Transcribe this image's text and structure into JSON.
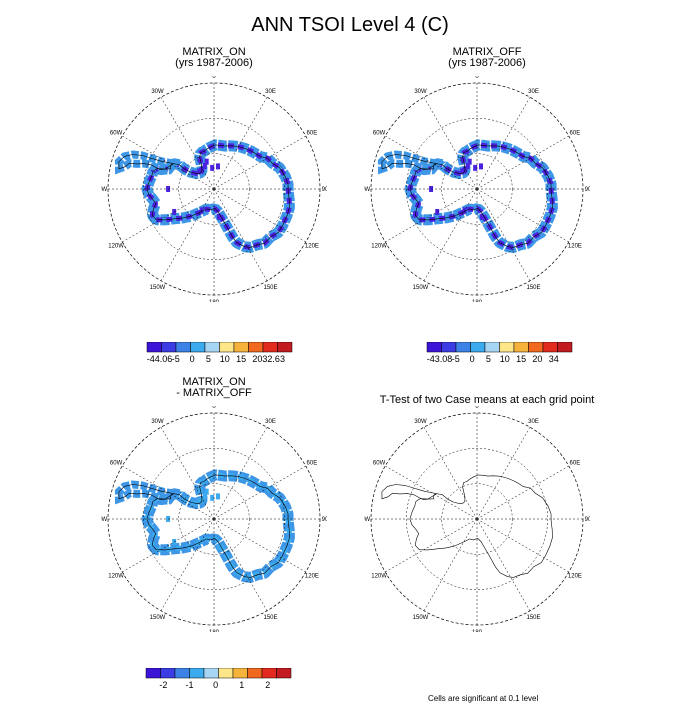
{
  "figure": {
    "title": "ANN TSOI Level 4 (C)"
  },
  "panels": [
    {
      "id": "on",
      "title_lines": [
        "MATRIX_ON",
        "(yrs 1987-2006)"
      ],
      "fill_color": "#4a22e0",
      "edge_color": "#3d96e6",
      "colorbar": {
        "colors": [
          "#3c14d8",
          "#3c3ce4",
          "#3d82e6",
          "#3caaee",
          "#a7d6f5",
          "#fde58a",
          "#f6b33c",
          "#f0691f",
          "#e22a1e",
          "#c21b20"
        ],
        "labels": [
          "-44.06",
          "-5",
          "0",
          "5",
          "10",
          "15",
          "20",
          "32.63"
        ]
      }
    },
    {
      "id": "off",
      "title_lines": [
        "MATRIX_OFF",
        "(yrs 1987-2006)"
      ],
      "fill_color": "#4a22e0",
      "edge_color": "#3d96e6",
      "colorbar": {
        "colors": [
          "#3c14d8",
          "#3c3ce4",
          "#3d82e6",
          "#3caaee",
          "#a7d6f5",
          "#fde58a",
          "#f6b33c",
          "#f0691f",
          "#e22a1e",
          "#c21b20"
        ],
        "labels": [
          "-43.08",
          "-5",
          "0",
          "5",
          "10",
          "15",
          "20",
          "34"
        ]
      }
    },
    {
      "id": "diff",
      "title_lines": [
        "MATRIX_ON",
        "- MATRIX_OFF"
      ],
      "fill_color": "#3caaee",
      "edge_color": "#3d96e6",
      "colorbar": {
        "colors": [
          "#3c14d8",
          "#3c3ce4",
          "#3d82e6",
          "#3caaee",
          "#a7d6f5",
          "#fde58a",
          "#f6b33c",
          "#f0691f",
          "#e22a1e",
          "#c21b20"
        ],
        "labels": [
          "-2",
          "-1",
          "0",
          "1",
          "2"
        ]
      }
    },
    {
      "id": "ttest",
      "title_lines": [
        "T-Test of two Case means at each grid point"
      ],
      "fill_color": "none",
      "edge_color": "none",
      "footnote": "Cells are significant at 0.1 level"
    }
  ],
  "longitude_labels": [
    "0",
    "30E",
    "60E",
    "90E",
    "120E",
    "150E",
    "180",
    "150W",
    "120W",
    "90W",
    "60W",
    "30W"
  ]
}
